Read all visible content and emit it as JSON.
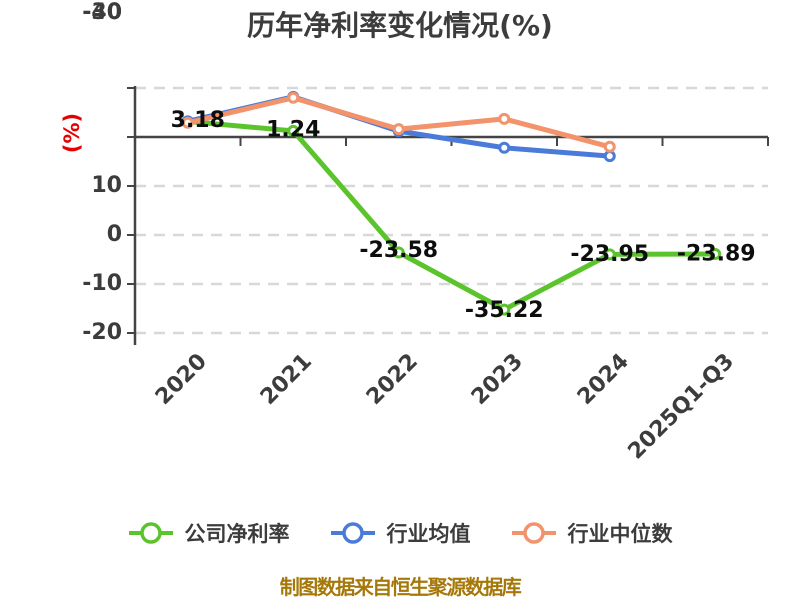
{
  "title": "历年净利率变化情况(%)",
  "y_axis": {
    "unit_label": "(%)",
    "ticks": [
      10,
      0,
      -10,
      -20,
      -30,
      -40
    ]
  },
  "x_axis": {
    "categories": [
      "2020",
      "2021",
      "2022",
      "2023",
      "2024",
      "2025Q1-Q3"
    ]
  },
  "chart_data": {
    "type": "line",
    "title": "历年净利率变化情况(%)",
    "categories": [
      "2020",
      "2021",
      "2022",
      "2023",
      "2024",
      "2025Q1-Q3"
    ],
    "ylabel": "(%)",
    "ylim": [
      -40,
      10
    ],
    "y_ticks": [
      10,
      0,
      -10,
      -20,
      -30,
      -40
    ],
    "grid": "horizontal-dashed",
    "legend_position": "bottom",
    "series": [
      {
        "name": "公司净利率",
        "color": "#5bc42d",
        "values": [
          3.18,
          1.24,
          -23.58,
          -35.22,
          -23.95,
          -23.89
        ],
        "labels": [
          "3.18",
          "1.24",
          "-23.58",
          "-35.22",
          "-23.95",
          "-23.89"
        ]
      },
      {
        "name": "行业均值",
        "color": "#4a7bd8",
        "values": [
          3.2,
          8.2,
          1.2,
          -2.2,
          -3.9,
          null
        ],
        "labels": null
      },
      {
        "name": "行业中位数",
        "color": "#f2936b",
        "values": [
          2.9,
          8.0,
          1.6,
          3.7,
          -2.0,
          null
        ],
        "labels": null
      }
    ]
  },
  "legend": {
    "items": [
      {
        "label": "公司净利率",
        "color": "#5bc42d"
      },
      {
        "label": "行业均值",
        "color": "#4a7bd8"
      },
      {
        "label": "行业中位数",
        "color": "#f2936b"
      }
    ]
  },
  "footer": {
    "source_text": "制图数据来自恒生聚源数据库"
  },
  "colors": {
    "title_text": "#3c3c3c",
    "axis_line": "#444444",
    "gridline": "#d8d8d8",
    "data_label": "#0d0d0d",
    "y_unit_label": "#e60000",
    "footer_text": "#a6780a",
    "background": "#ffffff"
  }
}
